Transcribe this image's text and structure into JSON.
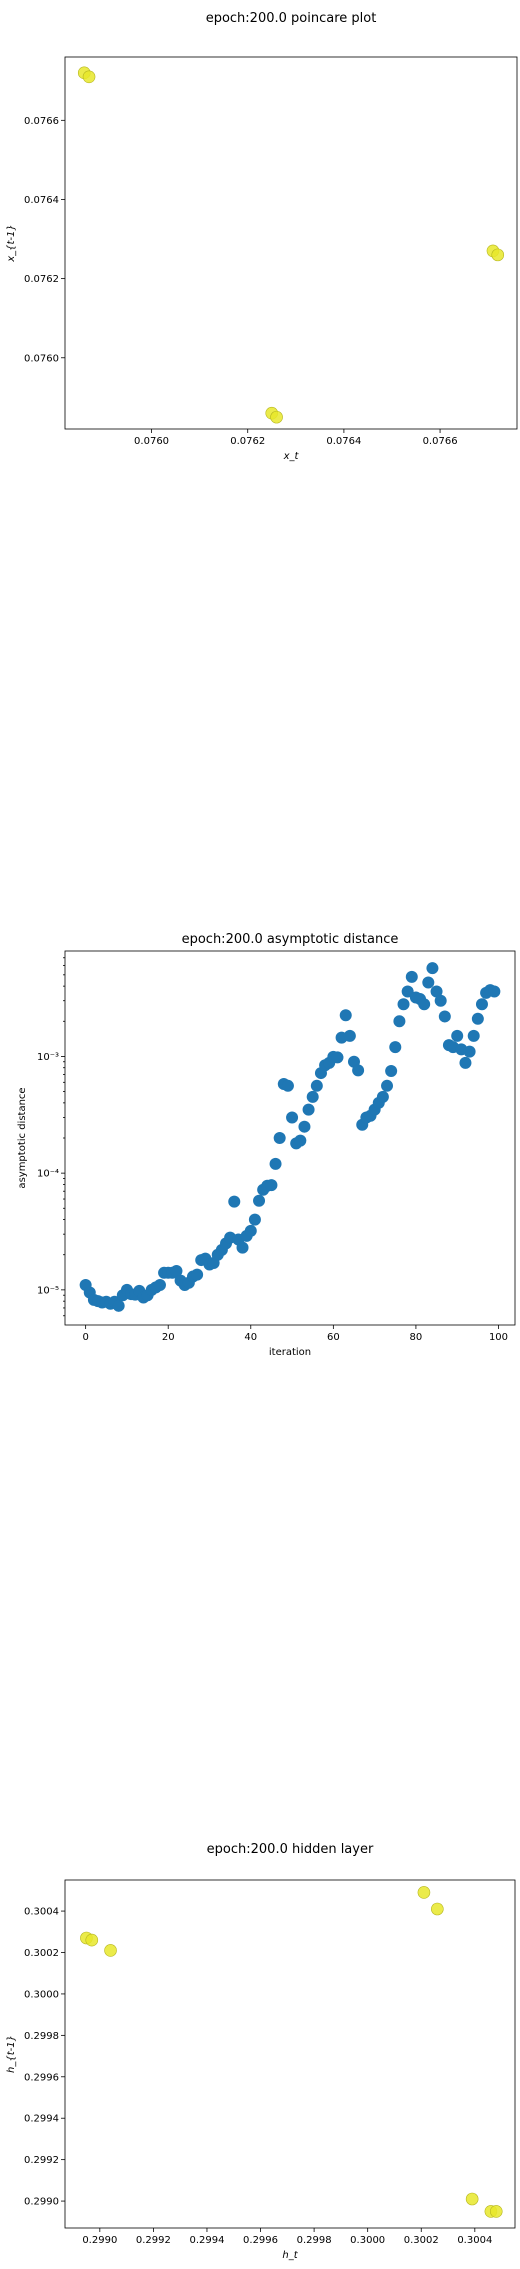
{
  "chart_data": [
    {
      "type": "scatter",
      "title": "epoch:200.0 poincare plot",
      "xlabel": "x_t",
      "ylabel": "x_{t-1}",
      "xlim": [
        0.07582,
        0.07676
      ],
      "ylim": [
        0.07582,
        0.07676
      ],
      "xticks": [
        0.076,
        0.0762,
        0.0764,
        0.0766
      ],
      "xtick_labels": [
        "0.0760",
        "0.0762",
        "0.0764",
        "0.0766"
      ],
      "yticks": [
        0.076,
        0.0762,
        0.0764,
        0.0766
      ],
      "ytick_labels": [
        "0.0760",
        "0.0762",
        "0.0764",
        "0.0766"
      ],
      "grid": false,
      "marker_color": "#e8e82a",
      "marker_edge": "#b5b51e",
      "x": [
        0.07586,
        0.07587,
        0.07625,
        0.07626,
        0.07671,
        0.07672
      ],
      "y": [
        0.07672,
        0.07671,
        0.07586,
        0.07585,
        0.07627,
        0.07626
      ]
    },
    {
      "type": "scatter",
      "title": "epoch:200.0 asymptotic distance",
      "xlabel": "iteration",
      "ylabel": "asymptotic distance",
      "yscale": "log",
      "xlim": [
        -5,
        104
      ],
      "ylim": [
        5e-06,
        0.008
      ],
      "xticks": [
        0,
        20,
        40,
        60,
        80,
        100
      ],
      "xtick_labels": [
        "0",
        "20",
        "40",
        "60",
        "80",
        "100"
      ],
      "yticks": [
        1e-05,
        0.0001,
        0.001
      ],
      "ytick_labels": [
        "10⁻⁵",
        "10⁻⁴",
        "10⁻³"
      ],
      "grid": false,
      "marker_color": "#1f77b4",
      "x": [
        0,
        1,
        2,
        3,
        4,
        5,
        6,
        7,
        8,
        9,
        10,
        11,
        12,
        13,
        14,
        15,
        16,
        17,
        18,
        19,
        20,
        21,
        22,
        23,
        24,
        25,
        26,
        27,
        28,
        29,
        30,
        31,
        32,
        33,
        34,
        35,
        36,
        37,
        38,
        39,
        40,
        41,
        42,
        43,
        44,
        45,
        46,
        47,
        48,
        49,
        50,
        51,
        52,
        53,
        54,
        55,
        56,
        57,
        58,
        59,
        60,
        61,
        62,
        63,
        64,
        65,
        66,
        67,
        68,
        69,
        70,
        71,
        72,
        73,
        74,
        75,
        76,
        77,
        78,
        79,
        80,
        81,
        82,
        83,
        84,
        85,
        86,
        87,
        88,
        89,
        90,
        91,
        92,
        93,
        94,
        95,
        96,
        97,
        98,
        99
      ],
      "y": [
        1.1e-05,
        9.5e-06,
        8.2e-06,
        8e-06,
        7.8e-06,
        7.9e-06,
        7.6e-06,
        7.9e-06,
        7.3e-06,
        9e-06,
        1e-05,
        9.2e-06,
        9.1e-06,
        9.8e-06,
        8.6e-06,
        9e-06,
        1e-05,
        1.05e-05,
        1.1e-05,
        1.4e-05,
        1.4e-05,
        1.4e-05,
        1.45e-05,
        1.2e-05,
        1.1e-05,
        1.15e-05,
        1.3e-05,
        1.35e-05,
        1.8e-05,
        1.85e-05,
        1.65e-05,
        1.7e-05,
        2e-05,
        2.2e-05,
        2.5e-05,
        2.8e-05,
        5.7e-05,
        2.7e-05,
        2.3e-05,
        2.9e-05,
        3.2e-05,
        4e-05,
        5.8e-05,
        7.2e-05,
        7.8e-05,
        7.9e-05,
        0.00012,
        0.0002,
        0.00058,
        0.00056,
        0.0003,
        0.00018,
        0.00019,
        0.00025,
        0.00035,
        0.00045,
        0.00056,
        0.00072,
        0.00084,
        0.00088,
        0.00099,
        0.00098,
        0.00145,
        0.00225,
        0.0015,
        0.0009,
        0.00076,
        0.00026,
        0.0003,
        0.00031,
        0.00035,
        0.0004,
        0.00045,
        0.00056,
        0.00075,
        0.0012,
        0.002,
        0.0028,
        0.0036,
        0.0048,
        0.0032,
        0.0031,
        0.0028,
        0.0043,
        0.0057,
        0.0036,
        0.003,
        0.0022,
        0.00125,
        0.0012,
        0.0015,
        0.00115,
        0.00088,
        0.0011,
        0.0015,
        0.0021,
        0.0028,
        0.0035,
        0.0037,
        0.0036
      ]
    },
    {
      "type": "scatter",
      "title": "epoch:200.0 hidden layer",
      "xlabel": "h_t",
      "ylabel": "h_{t-1}",
      "xlim": [
        0.29887,
        0.30055
      ],
      "ylim": [
        0.29887,
        0.30055
      ],
      "xticks": [
        0.299,
        0.2992,
        0.2994,
        0.2996,
        0.2998,
        0.3,
        0.3002,
        0.3004
      ],
      "xtick_labels": [
        "0.2990",
        "0.2992",
        "0.2994",
        "0.2996",
        "0.2998",
        "0.3000",
        "0.3002",
        "0.3004"
      ],
      "yticks": [
        0.299,
        0.2992,
        0.2994,
        0.2996,
        0.2998,
        0.3,
        0.3002,
        0.3004
      ],
      "ytick_labels": [
        "0.2990",
        "0.2992",
        "0.2994",
        "0.2996",
        "0.2998",
        "0.3000",
        "0.3002",
        "0.3004"
      ],
      "grid": false,
      "marker_color": "#e8e82a",
      "marker_edge": "#b5b51e",
      "x": [
        0.29895,
        0.29897,
        0.29904,
        0.30021,
        0.30026,
        0.30039,
        0.30046,
        0.30048
      ],
      "y": [
        0.30027,
        0.30026,
        0.30021,
        0.30049,
        0.30041,
        0.29901,
        0.29895,
        0.29895
      ]
    }
  ]
}
